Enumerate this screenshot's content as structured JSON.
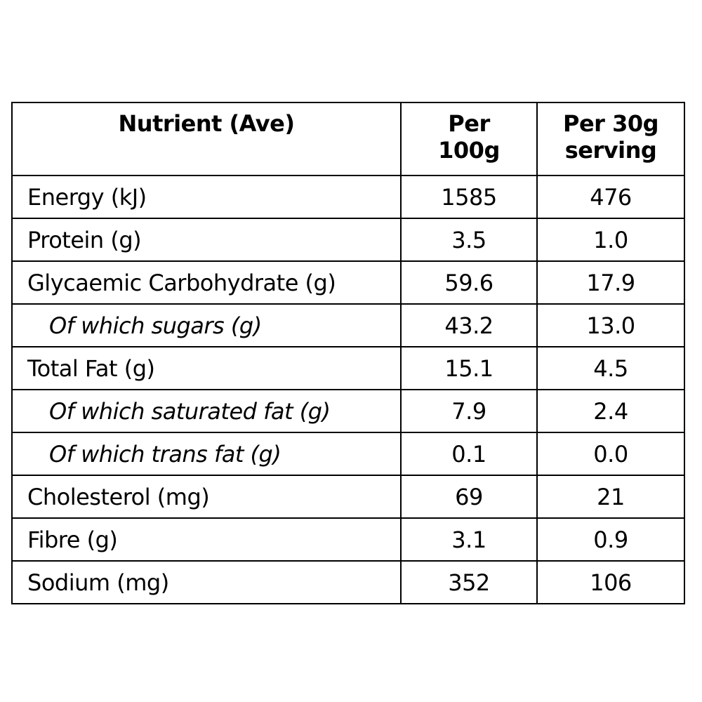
{
  "table": {
    "headers": {
      "nutrient": "Nutrient (Ave)",
      "per_100g_line1": "Per",
      "per_100g_line2": "100g",
      "per_serving_line1": "Per 30g",
      "per_serving_line2": "serving"
    },
    "rows": [
      {
        "label": "Energy (kJ)",
        "per_100g": "1585",
        "per_serving": "476",
        "sub": false
      },
      {
        "label": "Protein (g)",
        "per_100g": "3.5",
        "per_serving": "1.0",
        "sub": false
      },
      {
        "label": "Glycaemic Carbohydrate (g)",
        "per_100g": "59.6",
        "per_serving": "17.9",
        "sub": false
      },
      {
        "label": "Of which sugars (g)",
        "per_100g": "43.2",
        "per_serving": "13.0",
        "sub": true
      },
      {
        "label": "Total Fat (g)",
        "per_100g": "15.1",
        "per_serving": "4.5",
        "sub": false
      },
      {
        "label": "Of which saturated fat (g)",
        "per_100g": "7.9",
        "per_serving": "2.4",
        "sub": true
      },
      {
        "label": "Of which trans fat (g)",
        "per_100g": "0.1",
        "per_serving": "0.0",
        "sub": true
      },
      {
        "label": "Cholesterol (mg)",
        "per_100g": "69",
        "per_serving": "21",
        "sub": false
      },
      {
        "label": "Fibre (g)",
        "per_100g": "3.1",
        "per_serving": "0.9",
        "sub": false
      },
      {
        "label": "Sodium (mg)",
        "per_100g": "352",
        "per_serving": "106",
        "sub": false
      }
    ]
  }
}
